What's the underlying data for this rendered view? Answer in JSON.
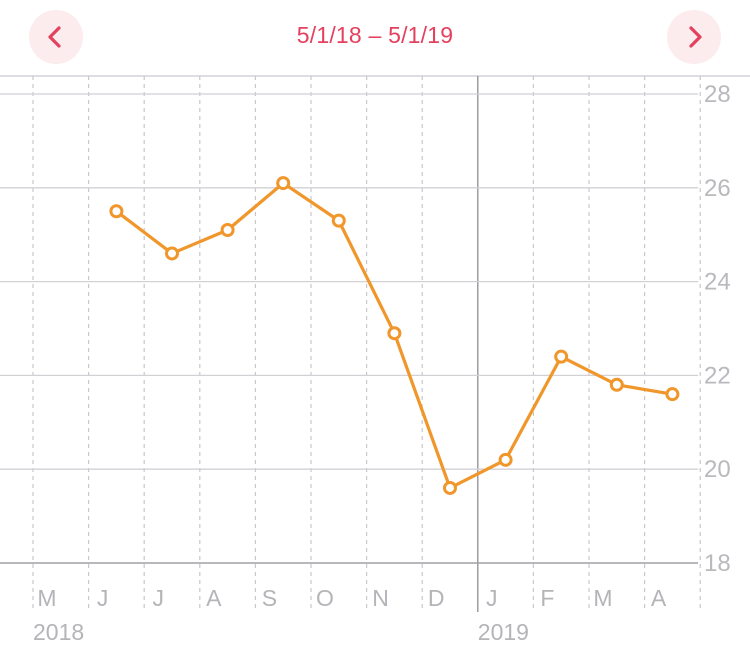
{
  "header": {
    "range_label": "5/1/18 – 5/1/19",
    "prev_icon": "chevron-left-icon",
    "next_icon": "chevron-right-icon",
    "accent_color": "#e5405e",
    "button_bg": "#fcecee"
  },
  "chart_data": {
    "type": "line",
    "x_axis": {
      "month_labels": [
        "M",
        "J",
        "J",
        "A",
        "S",
        "O",
        "N",
        "D",
        "J",
        "F",
        "M",
        "A"
      ],
      "year_labels": [
        {
          "label": "2018",
          "month_index": 0
        },
        {
          "label": "2019",
          "month_index": 8
        }
      ]
    },
    "y_axis": {
      "ticks": [
        18,
        20,
        22,
        24,
        26,
        28
      ],
      "ylim": [
        18,
        28
      ]
    },
    "grid": true,
    "series": [
      {
        "color": "#f0962a",
        "points": [
          {
            "month_index": 1.5,
            "value": 25.5
          },
          {
            "month_index": 2.5,
            "value": 24.6
          },
          {
            "month_index": 3.5,
            "value": 25.1
          },
          {
            "month_index": 4.5,
            "value": 26.1
          },
          {
            "month_index": 5.5,
            "value": 25.3
          },
          {
            "month_index": 6.5,
            "value": 22.9
          },
          {
            "month_index": 7.5,
            "value": 19.6
          },
          {
            "month_index": 8.5,
            "value": 20.2
          },
          {
            "month_index": 9.5,
            "value": 22.4
          },
          {
            "month_index": 10.5,
            "value": 21.8
          },
          {
            "month_index": 11.5,
            "value": 21.6
          }
        ]
      }
    ]
  }
}
